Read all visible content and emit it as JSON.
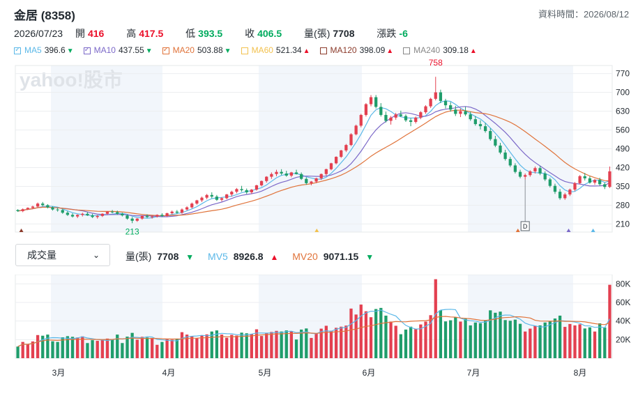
{
  "header": {
    "title": "金居 (8358)",
    "data_time": "資料時間：2026/08/12"
  },
  "quote": {
    "date": "2026/07/23",
    "open_label": "開",
    "open": "416",
    "high_label": "高",
    "high": "417.5",
    "low_label": "低",
    "low": "393.5",
    "close_label": "收",
    "close": "406.5",
    "volume_label": "量(張)",
    "volume": "7708",
    "change_label": "漲跌",
    "change": "-6"
  },
  "ma_legend": [
    {
      "label": "MA5",
      "value": "396.6",
      "dir": "down",
      "color": "#5bb8e8",
      "checked": true
    },
    {
      "label": "MA10",
      "value": "437.55",
      "dir": "down",
      "color": "#7b68c8",
      "checked": true
    },
    {
      "label": "MA20",
      "value": "503.88",
      "dir": "down",
      "color": "#e0733a",
      "checked": true
    },
    {
      "label": "MA60",
      "value": "521.34",
      "dir": "up",
      "color": "#f2c14e",
      "checked": false
    },
    {
      "label": "MA120",
      "value": "398.09",
      "dir": "up",
      "color": "#8b3a2a",
      "checked": false
    },
    {
      "label": "MA240",
      "value": "309.18",
      "dir": "up",
      "color": "#888888",
      "checked": false
    }
  ],
  "chart_data": {
    "type": "candlestick",
    "watermark": "yahoo!股市",
    "y_ticks": [
      210,
      280,
      350,
      420,
      490,
      560,
      630,
      700,
      770
    ],
    "ylim": [
      180,
      800
    ],
    "x_labels": [
      "3月",
      "4月",
      "5月",
      "6月",
      "7月",
      "8月"
    ],
    "annotations": {
      "max_label": "758",
      "min_label": "213",
      "event_marker": "D"
    },
    "candles": [
      [
        262,
        265,
        255,
        258
      ],
      [
        258,
        268,
        254,
        265
      ],
      [
        265,
        272,
        262,
        270
      ],
      [
        270,
        278,
        266,
        275
      ],
      [
        275,
        290,
        272,
        286
      ],
      [
        286,
        292,
        276,
        280
      ],
      [
        280,
        284,
        268,
        272
      ],
      [
        272,
        276,
        260,
        264
      ],
      [
        264,
        270,
        256,
        262
      ],
      [
        262,
        266,
        248,
        252
      ],
      [
        252,
        258,
        240,
        244
      ],
      [
        244,
        250,
        234,
        238
      ],
      [
        238,
        246,
        232,
        244
      ],
      [
        244,
        252,
        238,
        248
      ],
      [
        248,
        254,
        240,
        242
      ],
      [
        242,
        248,
        232,
        236
      ],
      [
        236,
        244,
        230,
        240
      ],
      [
        240,
        250,
        236,
        248
      ],
      [
        248,
        258,
        244,
        256
      ],
      [
        256,
        262,
        250,
        254
      ],
      [
        254,
        260,
        244,
        248
      ],
      [
        248,
        252,
        238,
        242
      ],
      [
        242,
        246,
        226,
        230
      ],
      [
        230,
        236,
        213,
        222
      ],
      [
        222,
        232,
        218,
        230
      ],
      [
        230,
        242,
        226,
        240
      ],
      [
        240,
        246,
        232,
        236
      ],
      [
        236,
        242,
        230,
        238
      ],
      [
        238,
        246,
        234,
        244
      ],
      [
        244,
        250,
        236,
        240
      ],
      [
        240,
        252,
        236,
        250
      ],
      [
        250,
        260,
        246,
        256
      ],
      [
        256,
        262,
        248,
        252
      ],
      [
        252,
        268,
        248,
        264
      ],
      [
        264,
        276,
        260,
        272
      ],
      [
        272,
        290,
        268,
        286
      ],
      [
        286,
        300,
        282,
        298
      ],
      [
        298,
        312,
        292,
        308
      ],
      [
        308,
        322,
        302,
        318
      ],
      [
        318,
        328,
        306,
        312
      ],
      [
        312,
        318,
        296,
        300
      ],
      [
        300,
        310,
        294,
        306
      ],
      [
        306,
        322,
        302,
        320
      ],
      [
        320,
        334,
        312,
        330
      ],
      [
        330,
        344,
        324,
        340
      ],
      [
        340,
        352,
        330,
        336
      ],
      [
        336,
        342,
        322,
        328
      ],
      [
        328,
        340,
        322,
        338
      ],
      [
        338,
        356,
        334,
        354
      ],
      [
        354,
        372,
        350,
        370
      ],
      [
        370,
        388,
        364,
        386
      ],
      [
        386,
        402,
        378,
        396
      ],
      [
        396,
        412,
        388,
        404
      ],
      [
        404,
        414,
        392,
        398
      ],
      [
        398,
        408,
        386,
        390
      ],
      [
        390,
        404,
        384,
        402
      ],
      [
        402,
        412,
        394,
        396
      ],
      [
        396,
        402,
        374,
        378
      ],
      [
        378,
        384,
        356,
        362
      ],
      [
        362,
        370,
        354,
        368
      ],
      [
        368,
        382,
        362,
        380
      ],
      [
        380,
        398,
        374,
        396
      ],
      [
        396,
        416,
        390,
        414
      ],
      [
        414,
        438,
        410,
        436
      ],
      [
        436,
        462,
        432,
        460
      ],
      [
        460,
        486,
        456,
        484
      ],
      [
        484,
        508,
        478,
        504
      ],
      [
        504,
        548,
        500,
        544
      ],
      [
        544,
        580,
        540,
        576
      ],
      [
        576,
        620,
        570,
        616
      ],
      [
        616,
        660,
        610,
        656
      ],
      [
        656,
        690,
        648,
        682
      ],
      [
        682,
        690,
        640,
        646
      ],
      [
        646,
        660,
        610,
        616
      ],
      [
        616,
        628,
        588,
        594
      ],
      [
        594,
        612,
        580,
        606
      ],
      [
        606,
        624,
        598,
        618
      ],
      [
        618,
        632,
        608,
        612
      ],
      [
        612,
        618,
        590,
        596
      ],
      [
        596,
        604,
        574,
        590
      ],
      [
        590,
        610,
        584,
        606
      ],
      [
        606,
        630,
        600,
        626
      ],
      [
        626,
        652,
        620,
        648
      ],
      [
        648,
        680,
        642,
        676
      ],
      [
        676,
        758,
        670,
        700
      ],
      [
        700,
        710,
        660,
        668
      ],
      [
        668,
        676,
        640,
        652
      ],
      [
        652,
        664,
        628,
        636
      ],
      [
        636,
        650,
        612,
        620
      ],
      [
        620,
        640,
        608,
        630
      ],
      [
        630,
        646,
        612,
        618
      ],
      [
        618,
        628,
        594,
        600
      ],
      [
        600,
        612,
        576,
        582
      ],
      [
        582,
        596,
        562,
        574
      ],
      [
        574,
        586,
        550,
        556
      ],
      [
        556,
        566,
        520,
        526
      ],
      [
        526,
        538,
        496,
        502
      ],
      [
        502,
        512,
        470,
        476
      ],
      [
        476,
        486,
        446,
        452
      ],
      [
        452,
        460,
        422,
        428
      ],
      [
        428,
        436,
        398,
        404
      ],
      [
        404,
        412,
        380,
        386
      ],
      [
        386,
        398,
        376,
        392
      ],
      [
        392,
        410,
        386,
        406
      ],
      [
        406,
        424,
        398,
        418
      ],
      [
        418,
        426,
        392,
        398
      ],
      [
        398,
        406,
        370,
        376
      ],
      [
        376,
        382,
        346,
        352
      ],
      [
        352,
        360,
        322,
        330
      ],
      [
        330,
        340,
        300,
        306
      ],
      [
        306,
        326,
        300,
        320
      ],
      [
        320,
        342,
        314,
        338
      ],
      [
        338,
        366,
        332,
        362
      ],
      [
        362,
        392,
        358,
        388
      ],
      [
        388,
        400,
        372,
        380
      ],
      [
        380,
        388,
        360,
        364
      ],
      [
        364,
        378,
        356,
        374
      ],
      [
        374,
        382,
        352,
        358
      ],
      [
        358,
        364,
        340,
        348
      ],
      [
        348,
        424,
        344,
        406
      ]
    ],
    "volume": {
      "label": "量(張)",
      "value": "7708",
      "mv5_label": "MV5",
      "mv5": "8926.8",
      "mv20_label": "MV20",
      "mv20": "9071.15",
      "y_ticks": [
        "20K",
        "40K",
        "60K",
        "80K"
      ],
      "ylim": [
        0,
        90000
      ]
    }
  },
  "volume_select": {
    "value": "成交量"
  }
}
